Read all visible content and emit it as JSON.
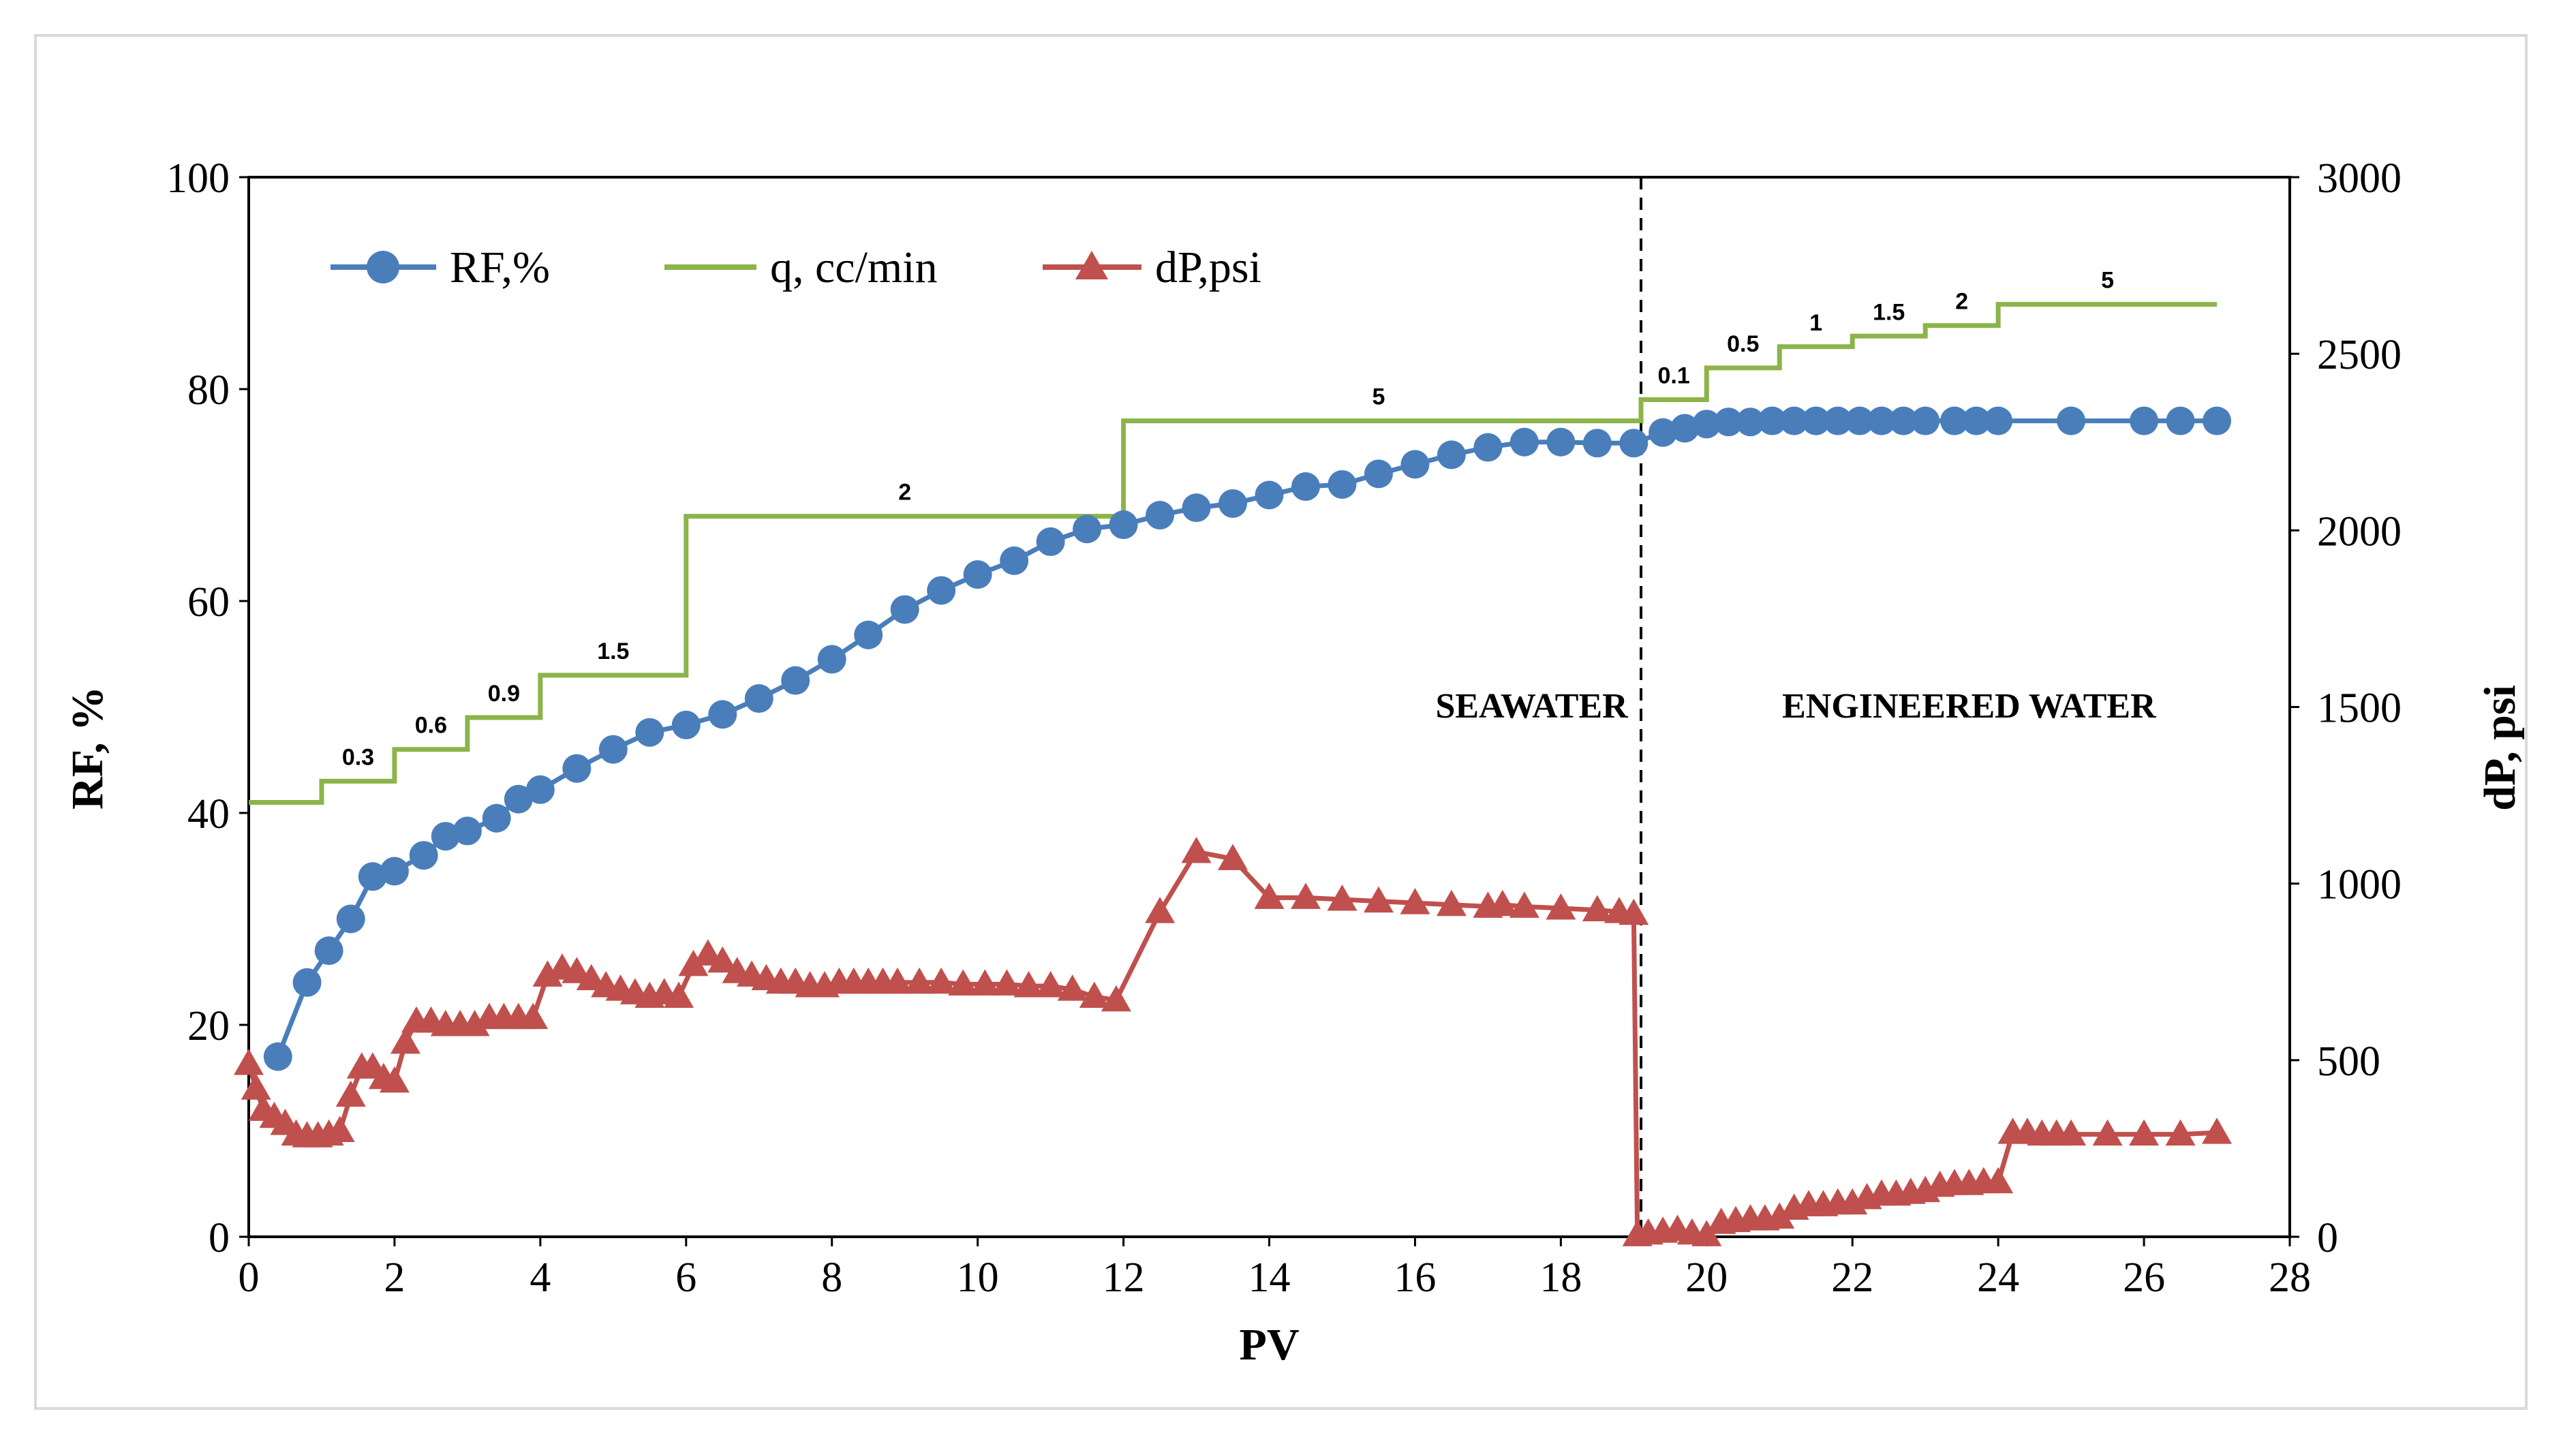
{
  "colors": {
    "rf": "#4a7ebb",
    "q": "#8cb44a",
    "dp": "#c0504d",
    "axis": "#000000",
    "frame": "#d9d9d9"
  },
  "chart_data": {
    "type": "line",
    "xlabel": "PV",
    "ylabel": "RF, %",
    "y2label": "dP, psi",
    "xlim": [
      0,
      28
    ],
    "ylim": [
      0,
      100
    ],
    "y2lim": [
      0,
      3000
    ],
    "x_ticks": [
      0,
      2,
      4,
      6,
      8,
      10,
      12,
      14,
      16,
      18,
      20,
      22,
      24,
      26,
      28
    ],
    "y_ticks": [
      0,
      20,
      40,
      60,
      80,
      100
    ],
    "y2_ticks": [
      0,
      500,
      1000,
      1500,
      2000,
      2500,
      3000
    ],
    "legend": {
      "placement": "top-left",
      "entries": [
        "RF,%",
        "q, cc/min",
        "dP,psi"
      ]
    },
    "divider_x": 19.1,
    "annotations": [
      {
        "text": "SEAWATER",
        "x": 17.6,
        "y": 49
      },
      {
        "text": "ENGINEERED WATER",
        "x": 23.6,
        "y": 49
      }
    ],
    "series": [
      {
        "name": "RF,%",
        "axis": "left",
        "marker": "circle",
        "x": [
          0.4,
          0.8,
          1.1,
          1.4,
          1.7,
          2.0,
          2.4,
          2.7,
          3.0,
          3.4,
          3.7,
          4.0,
          4.5,
          5.0,
          5.5,
          6.0,
          6.5,
          7.0,
          7.5,
          8.0,
          8.5,
          9.0,
          9.5,
          10.0,
          10.5,
          11.0,
          11.5,
          12.0,
          12.5,
          13.0,
          13.5,
          14.0,
          14.5,
          15.0,
          15.5,
          16.0,
          16.5,
          17.0,
          17.5,
          18.0,
          18.5,
          19.0,
          19.4,
          19.7,
          20.0,
          20.3,
          20.6,
          20.9,
          21.2,
          21.5,
          21.8,
          22.1,
          22.4,
          22.7,
          23.0,
          23.4,
          23.7,
          24.0,
          25.0,
          26.0,
          26.5,
          27.0
        ],
        "values": [
          17,
          24,
          27,
          30,
          34,
          34.5,
          36,
          37.8,
          38.3,
          39.5,
          41.3,
          42.2,
          44.2,
          46,
          47.6,
          48.3,
          49.3,
          50.8,
          52.5,
          54.5,
          56.8,
          59.2,
          61,
          62.5,
          63.8,
          65.6,
          66.8,
          67.2,
          68.1,
          68.8,
          69.2,
          70,
          70.8,
          71,
          72,
          72.9,
          73.8,
          74.5,
          75,
          75,
          74.9,
          74.9,
          75.9,
          76.3,
          76.7,
          76.9,
          76.9,
          77,
          77,
          77,
          77,
          77,
          77,
          77,
          77,
          77,
          77,
          77,
          77,
          77,
          77,
          77
        ]
      },
      {
        "name": "q, cc/min",
        "axis": "left",
        "marker": "none",
        "step": true,
        "x": [
          0,
          1,
          1,
          2,
          2,
          3,
          3,
          4,
          4,
          6,
          6,
          12,
          12,
          19.1,
          19.1,
          20,
          20,
          21,
          21,
          22,
          22,
          23,
          23,
          24,
          24,
          27
        ],
        "values": [
          41,
          41,
          43,
          43,
          46,
          46,
          49,
          49,
          53,
          53,
          68,
          68,
          77,
          77,
          79,
          79,
          82,
          82,
          84,
          84,
          85,
          85,
          86,
          86,
          88,
          88
        ],
        "step_labels": [
          {
            "text": "0.3",
            "x": 1.5,
            "y": 43
          },
          {
            "text": "0.6",
            "x": 2.5,
            "y": 46
          },
          {
            "text": "0.9",
            "x": 3.5,
            "y": 49
          },
          {
            "text": "1.5",
            "x": 5.0,
            "y": 53
          },
          {
            "text": "2",
            "x": 9.0,
            "y": 68
          },
          {
            "text": "5",
            "x": 15.5,
            "y": 77
          },
          {
            "text": "0.1",
            "x": 19.55,
            "y": 79
          },
          {
            "text": "0.5",
            "x": 20.5,
            "y": 82
          },
          {
            "text": "1",
            "x": 21.5,
            "y": 84
          },
          {
            "text": "1.5",
            "x": 22.5,
            "y": 85
          },
          {
            "text": "2",
            "x": 23.5,
            "y": 86
          },
          {
            "text": "5",
            "x": 25.5,
            "y": 88
          }
        ]
      },
      {
        "name": "dP,psi",
        "axis": "right",
        "marker": "triangle",
        "x": [
          0,
          0.1,
          0.2,
          0.35,
          0.5,
          0.65,
          0.8,
          0.95,
          1.1,
          1.25,
          1.4,
          1.55,
          1.7,
          1.85,
          2.0,
          2.15,
          2.3,
          2.5,
          2.7,
          2.9,
          3.1,
          3.3,
          3.5,
          3.7,
          3.9,
          4.1,
          4.3,
          4.5,
          4.7,
          4.9,
          5.1,
          5.3,
          5.5,
          5.7,
          5.9,
          6.1,
          6.3,
          6.5,
          6.7,
          6.9,
          7.1,
          7.3,
          7.5,
          7.7,
          7.9,
          8.1,
          8.3,
          8.5,
          8.7,
          8.9,
          9.2,
          9.5,
          9.8,
          10.1,
          10.4,
          10.7,
          11.0,
          11.3,
          11.6,
          11.9,
          12.5,
          13.0,
          13.5,
          14.0,
          14.5,
          15.0,
          15.5,
          16.0,
          16.5,
          17.0,
          17.2,
          17.5,
          18.0,
          18.5,
          18.8,
          19.0,
          19.05,
          19.2,
          19.4,
          19.6,
          19.8,
          20.0,
          20.2,
          20.4,
          20.6,
          20.8,
          21.0,
          21.2,
          21.4,
          21.6,
          21.8,
          22.0,
          22.2,
          22.4,
          22.6,
          22.8,
          23.0,
          23.2,
          23.4,
          23.6,
          23.8,
          24.0,
          24.2,
          24.4,
          24.6,
          24.8,
          25.0,
          25.5,
          26.0,
          26.5,
          27.0
        ],
        "values": [
          490,
          420,
          360,
          340,
          320,
          290,
          285,
          285,
          290,
          300,
          400,
          480,
          480,
          450,
          440,
          550,
          610,
          610,
          600,
          600,
          600,
          620,
          620,
          620,
          620,
          740,
          760,
          750,
          730,
          710,
          700,
          690,
          680,
          690,
          680,
          770,
          800,
          780,
          750,
          740,
          730,
          720,
          720,
          710,
          710,
          720,
          720,
          720,
          720,
          720,
          720,
          720,
          715,
          715,
          715,
          710,
          710,
          700,
          680,
          670,
          920,
          1090,
          1070,
          960,
          960,
          955,
          950,
          945,
          940,
          935,
          940,
          935,
          930,
          925,
          920,
          915,
          5,
          10,
          15,
          20,
          10,
          5,
          40,
          45,
          50,
          50,
          55,
          80,
          90,
          90,
          95,
          95,
          110,
          120,
          120,
          125,
          130,
          145,
          150,
          150,
          155,
          155,
          295,
          295,
          290,
          290,
          290,
          290,
          290,
          290,
          295
        ]
      }
    ]
  }
}
